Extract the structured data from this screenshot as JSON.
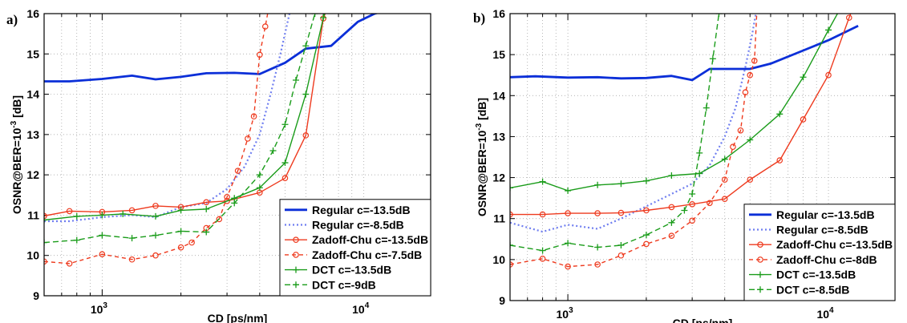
{
  "chart_data": [
    {
      "type": "line",
      "panel_label": "a)",
      "xlabel": "CD [ps/nm]",
      "ylabel_main": "OSNR@BER=10",
      "ylabel_exp": "-3",
      "ylabel_tail": " [dB]",
      "xscale": "log",
      "xlim": [
        600,
        18000
      ],
      "ylim": [
        9,
        16
      ],
      "yticks": [
        "9",
        "10",
        "11",
        "12",
        "13",
        "14",
        "15",
        "16"
      ],
      "xticks": [
        {
          "value": 1000,
          "base": "10",
          "exp": "3"
        },
        {
          "value": 10000,
          "base": "10",
          "exp": "4"
        }
      ],
      "grid": true,
      "legend_position": "bottom-right",
      "series": [
        {
          "name": "Regular c=-13.5dB",
          "color": "#0b2fd8",
          "width": 2.8,
          "dash": "",
          "marker": "none",
          "x": [
            600,
            750,
            1000,
            1300,
            1600,
            2000,
            2500,
            3200,
            4000,
            5000,
            6000,
            7500,
            9500,
            11000,
            12500
          ],
          "y": [
            14.32,
            14.32,
            14.38,
            14.46,
            14.37,
            14.43,
            14.52,
            14.53,
            14.5,
            14.78,
            15.13,
            15.2,
            15.8,
            16.0,
            16.1
          ]
        },
        {
          "name": "Regular c=-8.5dB",
          "color": "#6f7ef0",
          "width": 2.2,
          "dash": "2,3",
          "marker": "none",
          "x": [
            600,
            750,
            1000,
            1300,
            1600,
            2000,
            2500,
            3000,
            3500,
            4000,
            4400,
            4800,
            5200,
            5500
          ],
          "y": [
            10.85,
            10.85,
            10.95,
            11.0,
            10.95,
            11.2,
            11.3,
            11.65,
            12.2,
            13.0,
            14.0,
            15.0,
            16.0,
            16.6
          ]
        },
        {
          "name": "Zadoff-Chu c=-13.5dB",
          "color": "#ee3a1e",
          "width": 1.4,
          "dash": "",
          "marker": "circle",
          "x": [
            600,
            750,
            1000,
            1300,
            1600,
            2000,
            2500,
            3000,
            4000,
            5000,
            6000,
            7000,
            7600,
            8000
          ],
          "y": [
            10.98,
            11.1,
            11.08,
            11.12,
            11.23,
            11.2,
            11.32,
            11.35,
            11.56,
            11.92,
            12.98,
            15.88,
            16.5,
            17.0
          ]
        },
        {
          "name": "Zadoff-Chu c=-7.5dB",
          "color": "#ee3a1e",
          "width": 1.4,
          "dash": "5,4",
          "marker": "circle",
          "x": [
            600,
            750,
            1000,
            1300,
            1600,
            2000,
            2200,
            2500,
            2800,
            3000,
            3300,
            3600,
            3800,
            4000,
            4200,
            4400,
            4500
          ],
          "y": [
            9.85,
            9.8,
            10.03,
            9.9,
            10.0,
            10.2,
            10.32,
            10.68,
            10.9,
            11.45,
            12.1,
            12.9,
            13.45,
            14.98,
            15.68,
            16.4,
            17.0
          ]
        },
        {
          "name": "DCT c=-13.5dB",
          "color": "#1a9c1a",
          "width": 1.4,
          "dash": "",
          "marker": "plus",
          "x": [
            600,
            800,
            1000,
            1200,
            1600,
            2000,
            2500,
            3200,
            4000,
            5000,
            6000,
            7000,
            8000
          ],
          "y": [
            10.88,
            10.97,
            11.0,
            11.03,
            10.97,
            11.12,
            11.15,
            11.42,
            11.68,
            12.3,
            14.0,
            15.9,
            17.0
          ]
        },
        {
          "name": "DCT c=-9dB",
          "color": "#1a9c1a",
          "width": 1.4,
          "dash": "7,4",
          "marker": "plus",
          "x": [
            600,
            800,
            1000,
            1300,
            1600,
            2000,
            2500,
            3200,
            4000,
            4500,
            5000,
            5500,
            6000,
            6500,
            7000
          ],
          "y": [
            10.32,
            10.38,
            10.5,
            10.43,
            10.5,
            10.6,
            10.58,
            11.3,
            12.0,
            12.6,
            13.25,
            14.35,
            15.2,
            16.0,
            17.0
          ]
        }
      ]
    },
    {
      "type": "line",
      "panel_label": "b)",
      "xlabel": "CD [ps/nm]",
      "ylabel_main": "OSNR@BER=10",
      "ylabel_exp": "-3",
      "ylabel_tail": " [dB]",
      "xscale": "log",
      "xlim": [
        600,
        18000
      ],
      "ylim": [
        9,
        16
      ],
      "yticks": [
        "9",
        "10",
        "11",
        "12",
        "13",
        "14",
        "15",
        "16"
      ],
      "xticks": [
        {
          "value": 1000,
          "base": "10",
          "exp": "3"
        },
        {
          "value": 10000,
          "base": "10",
          "exp": "4"
        }
      ],
      "grid": true,
      "legend_position": "bottom-right",
      "series": [
        {
          "name": "Regular c=-13.5dB",
          "color": "#0b2fd8",
          "width": 2.8,
          "dash": "",
          "marker": "none",
          "x": [
            600,
            750,
            1000,
            1300,
            1600,
            2000,
            2500,
            3000,
            3500,
            4000,
            5000,
            6000,
            8000,
            10000,
            13000
          ],
          "y": [
            14.45,
            14.47,
            14.44,
            14.45,
            14.42,
            14.43,
            14.48,
            14.38,
            14.65,
            14.65,
            14.65,
            14.78,
            15.1,
            15.35,
            15.7
          ]
        },
        {
          "name": "Regular c=-8.5dB",
          "color": "#6f7ef0",
          "width": 2.2,
          "dash": "2,3",
          "marker": "none",
          "x": [
            600,
            800,
            1000,
            1300,
            1600,
            2000,
            2500,
            3000,
            3500,
            4000,
            4400,
            4800,
            5100,
            5400,
            5600
          ],
          "y": [
            10.9,
            10.68,
            10.85,
            10.75,
            11.0,
            11.3,
            11.6,
            11.85,
            12.3,
            13.0,
            13.7,
            14.7,
            15.5,
            16.4,
            17.0
          ]
        },
        {
          "name": "Zadoff-Chu c=-13.5dB",
          "color": "#ee3a1e",
          "width": 1.4,
          "dash": "",
          "marker": "circle",
          "x": [
            600,
            800,
            1000,
            1300,
            1600,
            2000,
            2500,
            3000,
            4000,
            5000,
            6500,
            8000,
            10000,
            12000,
            14000
          ],
          "y": [
            11.1,
            11.1,
            11.13,
            11.13,
            11.14,
            11.2,
            11.28,
            11.35,
            11.48,
            11.95,
            12.42,
            13.42,
            14.5,
            15.9,
            17.0
          ]
        },
        {
          "name": "Zadoff-Chu c=-8dB",
          "color": "#ee3a1e",
          "width": 1.4,
          "dash": "5,4",
          "marker": "circle",
          "x": [
            600,
            800,
            1000,
            1300,
            1600,
            2000,
            2500,
            3000,
            3500,
            4000,
            4300,
            4600,
            4800,
            5000,
            5200,
            5400
          ],
          "y": [
            9.88,
            10.02,
            9.83,
            9.88,
            10.1,
            10.38,
            10.58,
            10.95,
            11.38,
            11.95,
            12.75,
            13.15,
            14.08,
            14.5,
            14.85,
            17.0
          ]
        },
        {
          "name": "DCT c=-13.5dB",
          "color": "#1a9c1a",
          "width": 1.4,
          "dash": "",
          "marker": "plus",
          "x": [
            600,
            800,
            1000,
            1300,
            1600,
            2000,
            2500,
            3200,
            4000,
            5000,
            6500,
            8000,
            10000,
            11500,
            13000
          ],
          "y": [
            11.75,
            11.9,
            11.68,
            11.82,
            11.85,
            11.92,
            12.05,
            12.1,
            12.45,
            12.92,
            13.55,
            14.45,
            15.6,
            16.3,
            17.0
          ]
        },
        {
          "name": "DCT c=-8.5dB",
          "color": "#1a9c1a",
          "width": 1.4,
          "dash": "7,4",
          "marker": "plus",
          "x": [
            600,
            800,
            1000,
            1300,
            1600,
            2000,
            2500,
            2800,
            3000,
            3200,
            3400,
            3600,
            3800,
            4000
          ],
          "y": [
            10.35,
            10.22,
            10.4,
            10.3,
            10.35,
            10.6,
            10.9,
            11.2,
            11.6,
            12.6,
            13.7,
            14.9,
            16.0,
            17.0
          ]
        }
      ]
    }
  ]
}
